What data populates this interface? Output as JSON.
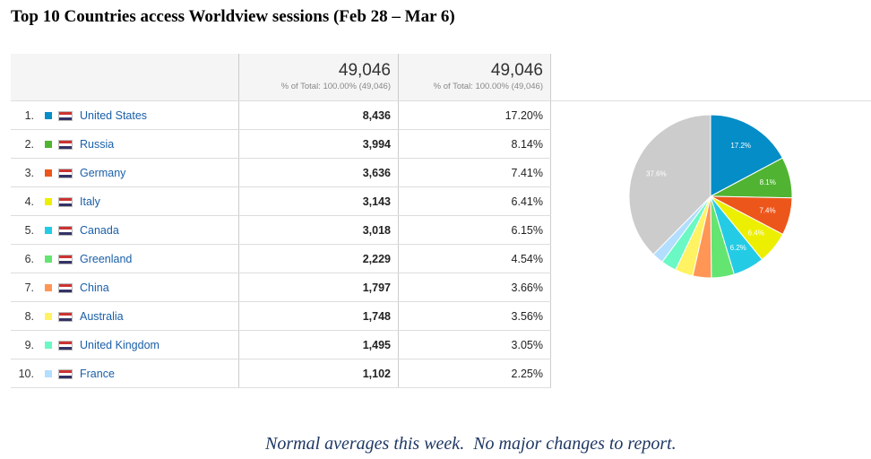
{
  "title": "Top 10 Countries access Worldview sessions (Feb 28 – Mar 6)",
  "table": {
    "header": [
      {
        "total": "49,046",
        "note": "% of Total: 100.00% (49,046)"
      },
      {
        "total": "49,046",
        "note": "% of Total: 100.00% (49,046)"
      }
    ],
    "rows": [
      [
        "1.",
        "United States",
        "8,436",
        "17.20%"
      ],
      [
        "2.",
        "Russia",
        "3,994",
        "8.14%"
      ],
      [
        "3.",
        "Germany",
        "3,636",
        "7.41%"
      ],
      [
        "4.",
        "Italy",
        "3,143",
        "6.41%"
      ],
      [
        "5.",
        "Canada",
        "3,018",
        "6.15%"
      ],
      [
        "6.",
        "Greenland",
        "2,229",
        "4.54%"
      ],
      [
        "7.",
        "China",
        "1,797",
        "3.66%"
      ],
      [
        "8.",
        "Australia",
        "1,748",
        "3.56%"
      ],
      [
        "9.",
        "United Kingdom",
        "1,495",
        "3.05%"
      ],
      [
        "10.",
        "France",
        "1,102",
        "2.25%"
      ]
    ]
  },
  "chart_data": {
    "type": "pie",
    "values": [
      17.2,
      8.1,
      7.4,
      6.4,
      6.2,
      4.54,
      3.66,
      3.56,
      3.05,
      2.25,
      37.6
    ],
    "value_labels": [
      "17.2%",
      "8.1%",
      "7.4%",
      "6.4%",
      "6.2%",
      null,
      null,
      null,
      null,
      null,
      "37.6%"
    ],
    "colors": [
      "#058dc7",
      "#50b432",
      "#ed561b",
      "#edef00",
      "#24cbe5",
      "#64e572",
      "#ff9655",
      "#fff263",
      "#6af9c4",
      "#b2deff",
      "#cccccc"
    ]
  },
  "footer": "Normal averages this week.  No major changes to report."
}
